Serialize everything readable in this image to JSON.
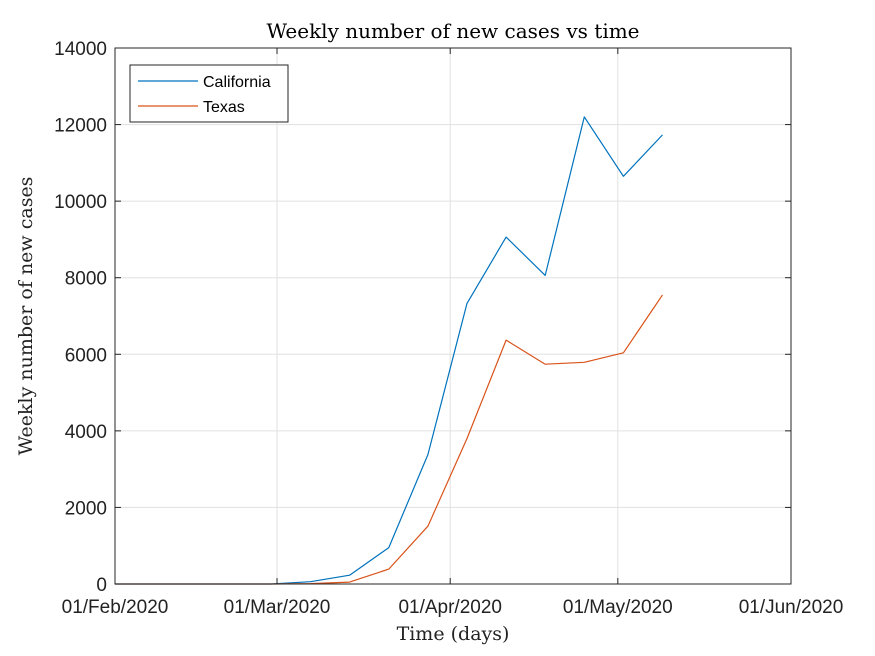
{
  "chart_data": {
    "type": "line",
    "title": "Weekly number of new cases vs time",
    "xlabel": "Time (days)",
    "ylabel": "Weekly number of new cases",
    "x_tick_labels": [
      "01/Feb/2020",
      "01/Mar/2020",
      "01/Apr/2020",
      "01/May/2020",
      "01/Jun/2020"
    ],
    "x_ticks": [
      "2020-02-01",
      "2020-03-01",
      "2020-04-01",
      "2020-05-01",
      "2020-06-01"
    ],
    "xlim": [
      "2020-02-01",
      "2020-06-01"
    ],
    "y_ticks": [
      0,
      2000,
      4000,
      6000,
      8000,
      10000,
      12000,
      14000
    ],
    "y_tick_labels": [
      "0",
      "2000",
      "4000",
      "6000",
      "8000",
      "10000",
      "12000",
      "14000"
    ],
    "ylim": [
      0,
      14000
    ],
    "grid": true,
    "legend_position": "top-left",
    "x": [
      "2020-02-01",
      "2020-02-08",
      "2020-02-15",
      "2020-02-22",
      "2020-02-29",
      "2020-03-07",
      "2020-03-14",
      "2020-03-21",
      "2020-03-28",
      "2020-04-04",
      "2020-04-11",
      "2020-04-18",
      "2020-04-25",
      "2020-05-02",
      "2020-05-09"
    ],
    "series": [
      {
        "name": "California",
        "color": "#0072BD",
        "values": [
          0,
          0,
          0,
          0,
          0,
          60,
          230,
          950,
          3380,
          7330,
          9060,
          8060,
          12200,
          10650,
          11730
        ]
      },
      {
        "name": "Texas",
        "color": "#D95319",
        "values": [
          0,
          0,
          0,
          0,
          0,
          10,
          50,
          390,
          1510,
          3800,
          6370,
          5740,
          5790,
          6040,
          7550
        ]
      }
    ]
  }
}
